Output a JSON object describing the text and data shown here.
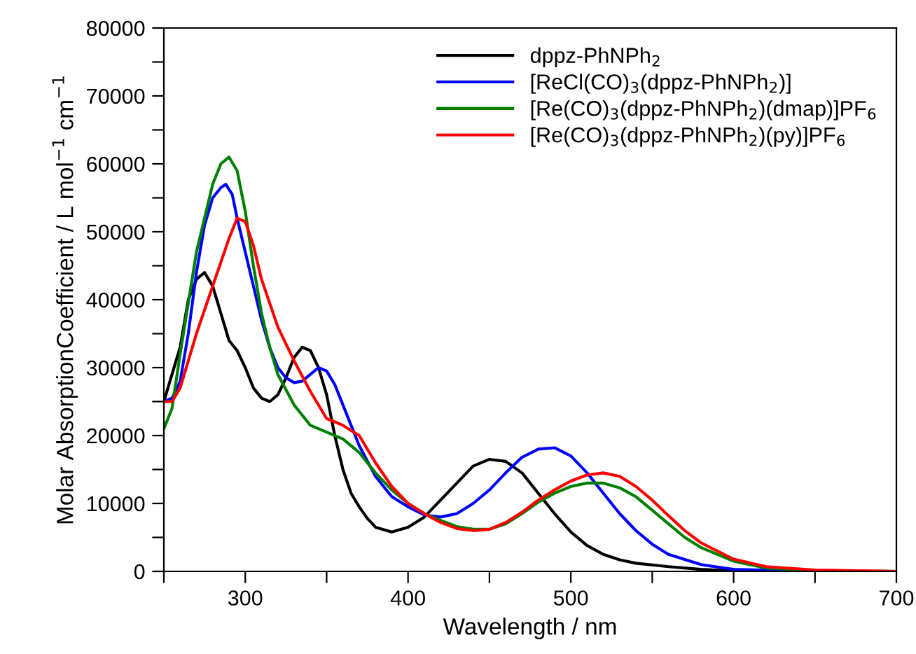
{
  "chart_data": {
    "type": "line",
    "xlabel": "Wavelength / nm",
    "ylabel": "Molar AbsorptionCoefficient / L mol$^{−1}$ cm$^{−1}$",
    "xlim": [
      250,
      700
    ],
    "ylim": [
      0,
      80000
    ],
    "xticks": [
      {
        "value": 250,
        "label": null
      },
      300,
      {
        "value": 350,
        "label": null
      },
      400,
      {
        "value": 450,
        "label": null
      },
      500,
      {
        "value": 550,
        "label": null
      },
      600,
      {
        "value": 650,
        "label": null
      },
      700
    ],
    "yticks": [
      0,
      {
        "value": 5000,
        "label": null
      },
      10000,
      {
        "value": 15000,
        "label": null
      },
      20000,
      {
        "value": 25000,
        "label": null
      },
      30000,
      {
        "value": 35000,
        "label": null
      },
      40000,
      {
        "value": 45000,
        "label": null
      },
      50000,
      {
        "value": 55000,
        "label": null
      },
      60000,
      {
        "value": 65000,
        "label": null
      },
      70000,
      {
        "value": 75000,
        "label": null
      },
      80000
    ],
    "grid": false,
    "legend": "top right",
    "marker": "none",
    "line_style": "solid",
    "series": [
      {
        "name": "dppz-PhNPh$_{2}$",
        "color": "#000000",
        "x": [
          250,
          260,
          265,
          270,
          275,
          280,
          285,
          290,
          295,
          300,
          305,
          310,
          315,
          320,
          325,
          330,
          335,
          340,
          345,
          350,
          355,
          360,
          365,
          370,
          375,
          380,
          390,
          400,
          410,
          420,
          430,
          440,
          450,
          460,
          470,
          480,
          490,
          500,
          510,
          520,
          530,
          540,
          560,
          580,
          600,
          650,
          700
        ],
        "values": [
          25000,
          33000,
          40000,
          43000,
          44000,
          42000,
          38000,
          34000,
          32500,
          30000,
          27000,
          25500,
          25000,
          26000,
          28500,
          31500,
          33000,
          32500,
          30000,
          26000,
          20000,
          15000,
          11500,
          9500,
          7800,
          6500,
          5800,
          6500,
          8000,
          10500,
          13000,
          15500,
          16500,
          16200,
          14500,
          11500,
          8500,
          5800,
          3800,
          2500,
          1700,
          1200,
          700,
          300,
          100,
          0,
          0
        ]
      },
      {
        "name": "[ReCl(CO)$_{3}$(dppz-PhNPh$_{2}$)]",
        "color": "#0000ff",
        "x": [
          250,
          255,
          260,
          265,
          270,
          275,
          280,
          285,
          288,
          292,
          295,
          300,
          305,
          310,
          315,
          320,
          325,
          330,
          335,
          340,
          345,
          350,
          355,
          360,
          370,
          380,
          390,
          400,
          410,
          420,
          430,
          440,
          450,
          460,
          470,
          480,
          490,
          500,
          510,
          520,
          530,
          540,
          550,
          560,
          580,
          600,
          650,
          700
        ],
        "values": [
          25000,
          25500,
          28000,
          35000,
          44000,
          51000,
          55000,
          56500,
          57000,
          55500,
          52000,
          47000,
          42000,
          37000,
          33000,
          30000,
          28500,
          27800,
          28000,
          29000,
          30000,
          29500,
          27500,
          24500,
          18500,
          14000,
          11000,
          9500,
          8300,
          8000,
          8500,
          10000,
          12000,
          14500,
          16800,
          18000,
          18200,
          17000,
          14500,
          11500,
          8500,
          6000,
          4000,
          2500,
          1000,
          300,
          0,
          0
        ]
      },
      {
        "name": "[Re(CO)$_{3}$(dppz-PhNPh$_{2}$)(dmap)]PF$_{6}$",
        "color": "#008000",
        "x": [
          250,
          255,
          260,
          270,
          280,
          285,
          290,
          295,
          300,
          305,
          310,
          315,
          320,
          330,
          340,
          350,
          360,
          370,
          380,
          390,
          400,
          410,
          420,
          430,
          440,
          450,
          460,
          470,
          480,
          490,
          500,
          510,
          520,
          530,
          540,
          550,
          560,
          570,
          580,
          600,
          620,
          650,
          700
        ],
        "values": [
          21000,
          24000,
          32000,
          47000,
          57000,
          60000,
          61000,
          59000,
          53000,
          45000,
          38000,
          33000,
          29000,
          24500,
          21500,
          20500,
          19500,
          17500,
          14500,
          12000,
          10000,
          8500,
          7500,
          6600,
          6200,
          6200,
          7000,
          8500,
          10200,
          11500,
          12500,
          13000,
          13000,
          12300,
          11000,
          9000,
          7000,
          5000,
          3500,
          1500,
          500,
          100,
          0
        ]
      },
      {
        "name": "[Re(CO)$_{3}$(dppz-PhNPh$_{2}$)(py)]PF$_{6}$",
        "color": "#ff0000",
        "x": [
          250,
          255,
          260,
          270,
          280,
          290,
          295,
          300,
          305,
          310,
          320,
          330,
          340,
          350,
          360,
          370,
          380,
          390,
          400,
          410,
          420,
          430,
          440,
          450,
          460,
          470,
          480,
          490,
          500,
          510,
          520,
          530,
          540,
          550,
          560,
          570,
          580,
          600,
          620,
          650,
          700
        ],
        "values": [
          25000,
          25000,
          27000,
          35000,
          42000,
          49000,
          52000,
          51500,
          48000,
          43000,
          36000,
          31000,
          26500,
          22500,
          21500,
          20000,
          16000,
          12500,
          10000,
          8500,
          7200,
          6300,
          6000,
          6200,
          7200,
          8700,
          10500,
          12000,
          13300,
          14200,
          14500,
          14000,
          12500,
          10500,
          8200,
          6000,
          4200,
          1800,
          700,
          200,
          0
        ]
      }
    ]
  }
}
